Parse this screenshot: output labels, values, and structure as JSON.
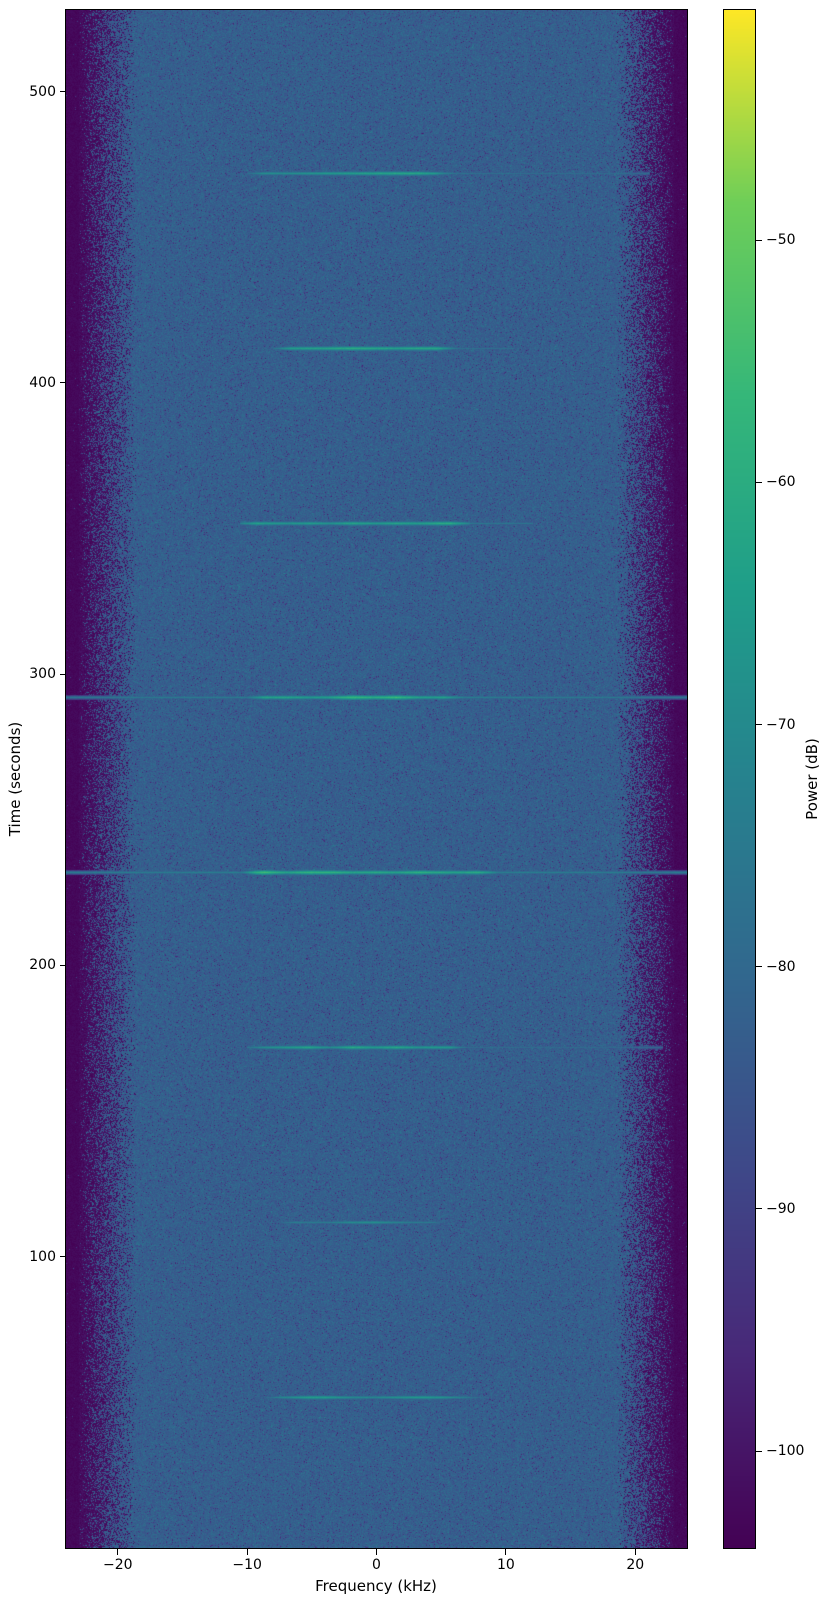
{
  "figure": {
    "background": "#ffffff"
  },
  "chart_data": {
    "type": "heatmap",
    "subtype": "spectrogram",
    "title": "",
    "xlabel": "Frequency (kHz)",
    "ylabel": "Time (seconds)",
    "colorbar_label": "Power (dB)",
    "x_range_khz": [
      -24,
      24
    ],
    "y_range_seconds": [
      0,
      528
    ],
    "x_ticks": [
      -20,
      -10,
      0,
      10,
      20
    ],
    "y_ticks": [
      100,
      200,
      300,
      400,
      500
    ],
    "colorbar_ticks": [
      -50,
      -60,
      -70,
      -80,
      -90,
      -100
    ],
    "power_range_db": [
      -104,
      -40.5
    ],
    "colormap": "viridis",
    "colormap_stops": [
      "#440154",
      "#482878",
      "#3e4989",
      "#31688e",
      "#26828e",
      "#1f9e89",
      "#35b779",
      "#6ece58",
      "#fde725"
    ],
    "noise_floor": {
      "center_db": -82.5,
      "edge_db": -104,
      "passband_khz": [
        -18.5,
        18.5
      ],
      "edge_cutoff_khz": [
        -23,
        23
      ],
      "noise_amplitude_db": 5
    },
    "bursts": [
      {
        "time_s": 52,
        "peak_db": -66,
        "core_khz": [
          -7.5,
          7.0
        ],
        "tail_khz": [
          -8.5,
          8.5
        ]
      },
      {
        "time_s": 112,
        "peak_db": -70,
        "core_khz": [
          -6.5,
          4.5
        ],
        "tail_khz": [
          -7.5,
          5.5
        ]
      },
      {
        "time_s": 172,
        "peak_db": -64,
        "core_khz": [
          -9.0,
          6.0
        ],
        "tail_khz": [
          -10.0,
          22.0
        ]
      },
      {
        "time_s": 232,
        "peak_db": -58,
        "core_khz": [
          -9.5,
          8.0
        ],
        "tail_khz": [
          -24.0,
          24.0
        ]
      },
      {
        "time_s": 292,
        "peak_db": -59,
        "core_khz": [
          -9.0,
          5.5
        ],
        "tail_khz": [
          -24.0,
          24.0
        ]
      },
      {
        "time_s": 352,
        "peak_db": -61,
        "core_khz": [
          -9.5,
          6.0
        ],
        "tail_khz": [
          -10.5,
          12.0
        ]
      },
      {
        "time_s": 412,
        "peak_db": -63,
        "core_khz": [
          -7.0,
          5.0
        ],
        "tail_khz": [
          -8.0,
          10.5
        ]
      },
      {
        "time_s": 472,
        "peak_db": -63,
        "core_khz": [
          -9.0,
          5.0
        ],
        "tail_khz": [
          -10.0,
          21.0
        ]
      }
    ]
  }
}
